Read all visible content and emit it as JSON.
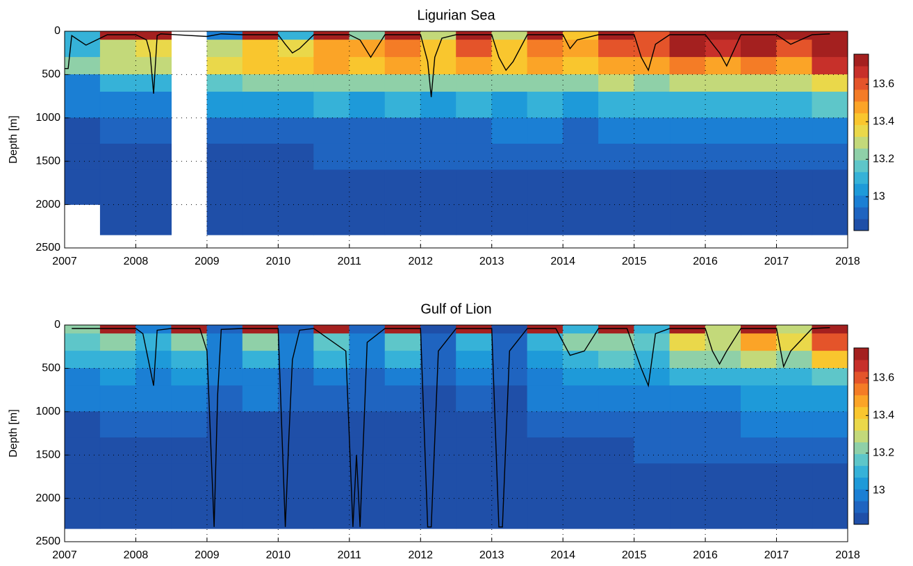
{
  "chart_data": [
    {
      "type": "heatmap",
      "title": "Ligurian Sea",
      "y_label": "Depth [m]",
      "xlim": [
        2007,
        2018
      ],
      "xticks": [
        2007,
        2008,
        2009,
        2010,
        2011,
        2012,
        2013,
        2014,
        2015,
        2016,
        2017,
        2018
      ],
      "ylim": [
        0,
        2500
      ],
      "y_reversed": true,
      "yticks": [
        0,
        500,
        1000,
        1500,
        2000,
        2500
      ],
      "grid": true,
      "clim": [
        12.82,
        13.76
      ],
      "cticks": [
        13,
        13.2,
        13.4,
        13.6
      ],
      "colormap": [
        "#1f4fa8",
        "#1f64c0",
        "#1b7fd4",
        "#1e9ad9",
        "#36b2d8",
        "#5ec6c9",
        "#8fd0a8",
        "#c3d97a",
        "#ead84a",
        "#f9c62e",
        "#fba427",
        "#f47c26",
        "#e4542a",
        "#c7302a",
        "#a4201f"
      ],
      "x": [
        2007,
        2007.5,
        2008,
        2008.5,
        2009,
        2009.5,
        2010,
        2010.5,
        2011,
        2011.5,
        2012,
        2012.5,
        2013,
        2013.5,
        2014,
        2014.5,
        2015,
        2015.5,
        2016,
        2016.5,
        2017,
        2017.5,
        2018
      ],
      "depth": [
        0,
        100,
        300,
        500,
        700,
        1000,
        1300,
        1600,
        2000,
        2350
      ],
      "values": [
        [
          13.1,
          13.1,
          13.2,
          13.0,
          12.95,
          12.88,
          12.87,
          12.86,
          null
        ],
        [
          13.76,
          13.3,
          13.3,
          13.1,
          12.98,
          12.9,
          12.88,
          12.87,
          12.86
        ],
        [
          13.76,
          13.35,
          13.3,
          13.1,
          13.0,
          12.9,
          12.88,
          12.87,
          12.86
        ],
        [
          null,
          null,
          null,
          null,
          null,
          null,
          null,
          null,
          null
        ],
        [
          13.0,
          13.3,
          13.35,
          13.15,
          13.02,
          12.9,
          12.88,
          12.87,
          12.86
        ],
        [
          13.76,
          13.4,
          13.4,
          13.2,
          13.05,
          12.92,
          12.88,
          12.87,
          12.86
        ],
        [
          13.1,
          13.35,
          13.4,
          13.2,
          13.05,
          12.92,
          12.88,
          12.87,
          12.86
        ],
        [
          13.76,
          13.5,
          13.45,
          13.25,
          13.08,
          12.93,
          12.89,
          12.87,
          12.86
        ],
        [
          13.2,
          13.45,
          13.4,
          13.2,
          13.05,
          12.93,
          12.89,
          12.87,
          12.86
        ],
        [
          13.76,
          13.55,
          13.45,
          13.25,
          13.08,
          12.93,
          12.89,
          12.87,
          12.86
        ],
        [
          13.3,
          13.4,
          13.4,
          13.2,
          13.05,
          12.93,
          12.89,
          12.87,
          12.86
        ],
        [
          13.76,
          13.6,
          13.5,
          13.25,
          13.08,
          12.94,
          12.9,
          12.87,
          12.86
        ],
        [
          13.3,
          13.4,
          13.4,
          13.2,
          13.05,
          12.95,
          12.92,
          12.88,
          12.86
        ],
        [
          13.76,
          13.55,
          13.45,
          13.25,
          13.1,
          12.95,
          12.9,
          12.87,
          12.86
        ],
        [
          13.4,
          13.5,
          13.4,
          13.2,
          13.05,
          12.94,
          12.9,
          12.87,
          12.86
        ],
        [
          13.76,
          13.6,
          13.5,
          13.3,
          13.1,
          12.95,
          12.9,
          12.87,
          12.86
        ],
        [
          13.6,
          13.6,
          13.5,
          13.25,
          13.08,
          12.95,
          12.9,
          12.87,
          12.86
        ],
        [
          13.76,
          13.7,
          13.55,
          13.3,
          13.12,
          12.96,
          12.9,
          12.87,
          12.86
        ],
        [
          13.7,
          13.65,
          13.5,
          13.28,
          13.1,
          12.96,
          12.9,
          12.87,
          12.86
        ],
        [
          13.76,
          13.7,
          13.55,
          13.3,
          13.12,
          12.96,
          12.9,
          12.87,
          12.86
        ],
        [
          13.7,
          13.6,
          13.5,
          13.3,
          13.12,
          12.96,
          12.9,
          12.87,
          12.86
        ],
        [
          13.76,
          13.75,
          13.65,
          13.35,
          13.15,
          12.97,
          12.91,
          12.88,
          12.86
        ]
      ],
      "line": {
        "color": "#000000",
        "x": [
          2007.0,
          2007.05,
          2007.1,
          2007.3,
          2007.6,
          2008.0,
          2008.15,
          2008.2,
          2008.25,
          2008.3,
          2008.35,
          2009.0,
          2009.2,
          2009.5,
          2010.0,
          2010.1,
          2010.2,
          2010.3,
          2010.5,
          2011.0,
          2011.15,
          2011.3,
          2011.5,
          2012.0,
          2012.1,
          2012.15,
          2012.2,
          2012.3,
          2012.5,
          2013.0,
          2013.1,
          2013.2,
          2013.3,
          2013.5,
          2014.0,
          2014.1,
          2014.2,
          2014.5,
          2015.0,
          2015.1,
          2015.2,
          2015.3,
          2015.5,
          2016.0,
          2016.2,
          2016.3,
          2016.5,
          2017.0,
          2017.2,
          2017.5,
          2017.75
        ],
        "values": [
          430,
          430,
          50,
          160,
          40,
          40,
          100,
          250,
          720,
          50,
          30,
          60,
          30,
          40,
          40,
          150,
          250,
          200,
          40,
          40,
          100,
          300,
          40,
          40,
          350,
          760,
          300,
          80,
          40,
          40,
          300,
          450,
          350,
          40,
          40,
          200,
          100,
          40,
          40,
          300,
          450,
          150,
          40,
          40,
          250,
          400,
          40,
          40,
          150,
          40,
          30
        ]
      }
    },
    {
      "type": "heatmap",
      "title": "Gulf of Lion",
      "y_label": "Depth [m]",
      "xlim": [
        2007,
        2018
      ],
      "xticks": [
        2007,
        2008,
        2009,
        2010,
        2011,
        2012,
        2013,
        2014,
        2015,
        2016,
        2017,
        2018
      ],
      "ylim": [
        0,
        2500
      ],
      "y_reversed": true,
      "yticks": [
        0,
        500,
        1000,
        1500,
        2000,
        2500
      ],
      "grid": true,
      "clim": [
        12.82,
        13.76
      ],
      "cticks": [
        13,
        13.2,
        13.4,
        13.6
      ],
      "colormap": [
        "#1f4fa8",
        "#1f64c0",
        "#1b7fd4",
        "#1e9ad9",
        "#36b2d8",
        "#5ec6c9",
        "#8fd0a8",
        "#c3d97a",
        "#ead84a",
        "#f9c62e",
        "#fba427",
        "#f47c26",
        "#e4542a",
        "#c7302a",
        "#a4201f"
      ],
      "x": [
        2007,
        2007.5,
        2008,
        2008.5,
        2009,
        2009.5,
        2010,
        2010.5,
        2011,
        2011.5,
        2012,
        2012.5,
        2013,
        2013.5,
        2014,
        2014.5,
        2015,
        2015.5,
        2016,
        2016.5,
        2017,
        2017.5,
        2018
      ],
      "depth": [
        0,
        100,
        300,
        500,
        700,
        1000,
        1300,
        1600,
        2000,
        2350
      ],
      "values": [
        [
          13.2,
          13.15,
          13.1,
          13.0,
          12.95,
          12.88,
          12.86,
          12.85,
          12.85
        ],
        [
          13.76,
          13.2,
          13.1,
          13.02,
          12.95,
          12.9,
          12.87,
          12.86,
          12.85
        ],
        [
          13.0,
          13.1,
          13.05,
          13.0,
          12.95,
          12.9,
          12.87,
          12.86,
          12.85
        ],
        [
          13.76,
          13.2,
          13.12,
          13.02,
          12.96,
          12.9,
          12.87,
          12.86,
          12.85
        ],
        [
          12.9,
          13.0,
          13.0,
          12.95,
          12.92,
          12.88,
          12.86,
          12.85,
          12.85
        ],
        [
          13.76,
          13.2,
          13.1,
          13.0,
          12.95,
          12.88,
          12.86,
          12.85,
          12.85
        ],
        [
          12.9,
          12.95,
          12.95,
          12.92,
          12.9,
          12.87,
          12.86,
          12.85,
          12.85
        ],
        [
          13.76,
          13.15,
          13.08,
          13.0,
          12.94,
          12.88,
          12.86,
          12.85,
          12.85
        ],
        [
          12.9,
          12.95,
          12.95,
          12.92,
          12.9,
          12.87,
          12.86,
          12.85,
          12.85
        ],
        [
          13.76,
          13.15,
          13.1,
          13.0,
          12.94,
          12.88,
          12.86,
          12.85,
          12.85
        ],
        [
          12.88,
          12.9,
          12.9,
          12.9,
          12.88,
          12.87,
          12.86,
          12.85,
          12.85
        ],
        [
          13.76,
          13.1,
          13.05,
          12.98,
          12.93,
          12.88,
          12.86,
          12.85,
          12.85
        ],
        [
          12.88,
          12.9,
          12.9,
          12.9,
          12.88,
          12.87,
          12.86,
          12.85,
          12.85
        ],
        [
          13.76,
          13.1,
          13.05,
          13.0,
          12.95,
          12.9,
          12.87,
          12.86,
          12.85
        ],
        [
          13.1,
          13.2,
          13.1,
          13.02,
          12.96,
          12.9,
          12.88,
          12.86,
          12.85
        ],
        [
          13.76,
          13.25,
          13.15,
          13.05,
          12.97,
          12.92,
          12.88,
          12.86,
          12.85
        ],
        [
          13.1,
          13.15,
          13.1,
          13.02,
          12.98,
          12.93,
          12.9,
          12.88,
          12.85
        ],
        [
          13.76,
          13.35,
          13.2,
          13.08,
          13.0,
          12.93,
          12.89,
          12.87,
          12.85
        ],
        [
          13.3,
          13.3,
          13.2,
          13.1,
          13.0,
          12.94,
          12.89,
          12.87,
          12.85
        ],
        [
          13.76,
          13.45,
          13.3,
          13.12,
          13.02,
          12.95,
          12.9,
          12.87,
          12.85
        ],
        [
          13.3,
          13.35,
          13.25,
          13.1,
          13.02,
          12.95,
          12.9,
          12.87,
          12.85
        ],
        [
          13.76,
          13.6,
          13.4,
          13.15,
          13.05,
          12.96,
          12.9,
          12.87,
          12.85
        ]
      ],
      "line": {
        "color": "#000000",
        "x": [
          2007.1,
          2007.5,
          2008.0,
          2008.1,
          2008.25,
          2008.3,
          2008.5,
          2008.9,
          2009.0,
          2009.1,
          2009.15,
          2009.2,
          2009.5,
          2010.0,
          2010.1,
          2010.15,
          2010.2,
          2010.3,
          2010.5,
          2010.95,
          2011.05,
          2011.1,
          2011.15,
          2011.25,
          2011.5,
          2012.0,
          2012.1,
          2012.15,
          2012.25,
          2012.5,
          2013.0,
          2013.1,
          2013.15,
          2013.25,
          2013.5,
          2013.9,
          2014.1,
          2014.3,
          2014.5,
          2014.9,
          2015.1,
          2015.2,
          2015.3,
          2015.5,
          2016.0,
          2016.1,
          2016.2,
          2016.3,
          2016.5,
          2017.0,
          2017.1,
          2017.2,
          2017.5,
          2017.75
        ],
        "values": [
          40,
          40,
          40,
          100,
          700,
          60,
          40,
          40,
          300,
          2330,
          800,
          50,
          40,
          40,
          2330,
          1300,
          400,
          60,
          40,
          300,
          2330,
          1500,
          2330,
          200,
          40,
          40,
          2330,
          2330,
          300,
          40,
          40,
          2330,
          2330,
          300,
          40,
          40,
          350,
          300,
          40,
          40,
          500,
          700,
          100,
          40,
          40,
          300,
          450,
          300,
          40,
          40,
          480,
          300,
          40,
          30
        ]
      }
    }
  ]
}
